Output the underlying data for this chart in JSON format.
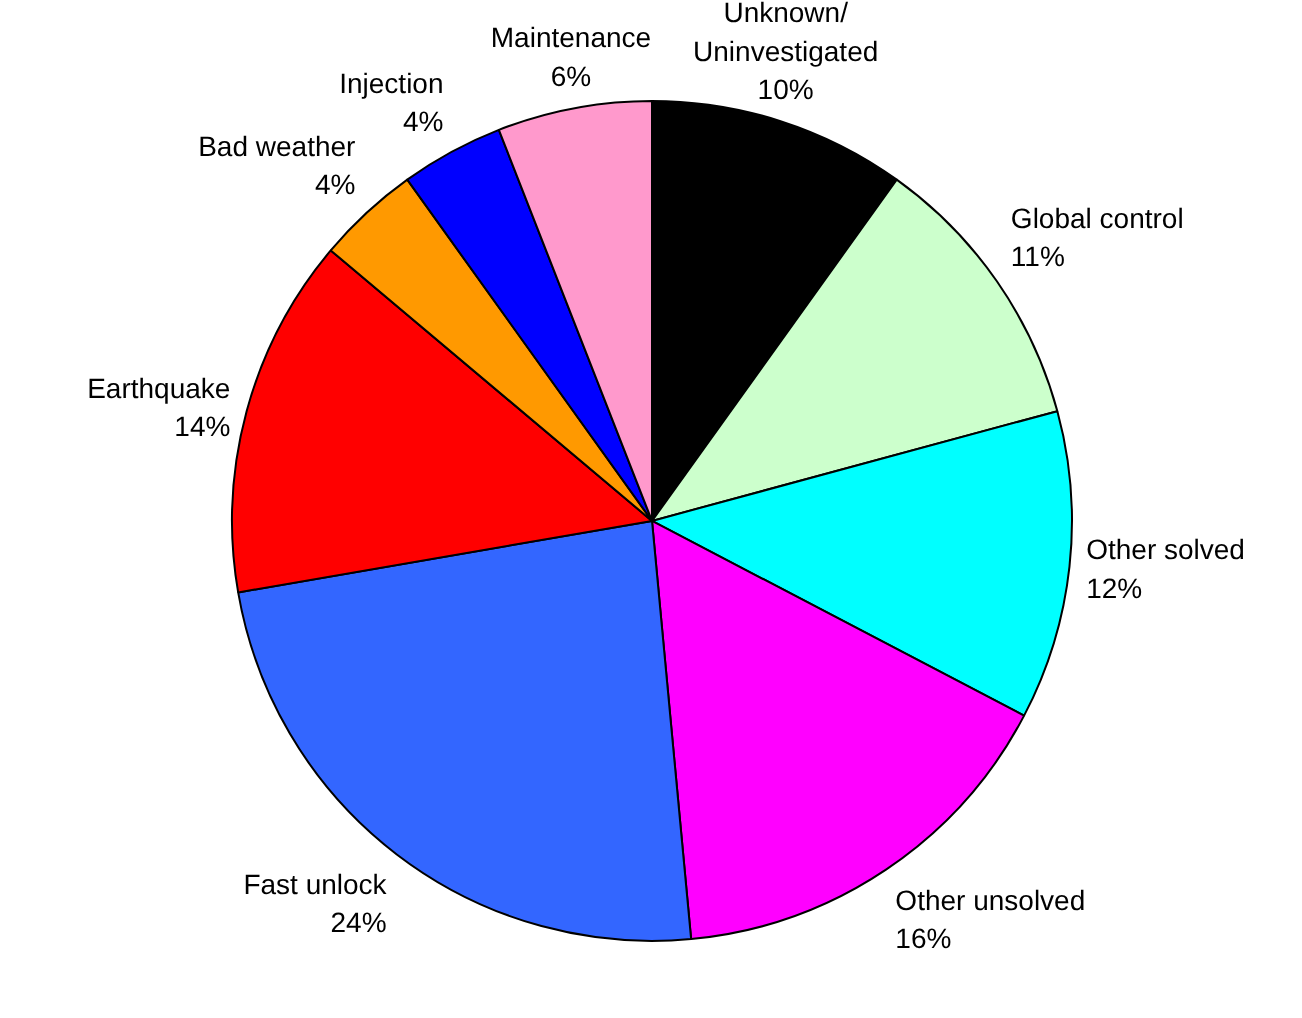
{
  "chart_data": {
    "type": "pie",
    "categories": [
      "Unknown/Uninvestigated",
      "Global control",
      "Other solved",
      "Other unsolved",
      "Fast unlock",
      "Earthquake",
      "Bad weather",
      "Injection",
      "Maintenance"
    ],
    "values": [
      10,
      11,
      12,
      16,
      24,
      14,
      4,
      4,
      6
    ],
    "value_labels": [
      "10%",
      "11%",
      "12%",
      "16%",
      "24%",
      "14%",
      "4%",
      "4%",
      "6%"
    ],
    "colors": [
      "#000000",
      "#ccffcc",
      "#00ffff",
      "#ff00ff",
      "#3366ff",
      "#ff0000",
      "#ff9900",
      "#0000ff",
      "#ff99cc"
    ]
  }
}
